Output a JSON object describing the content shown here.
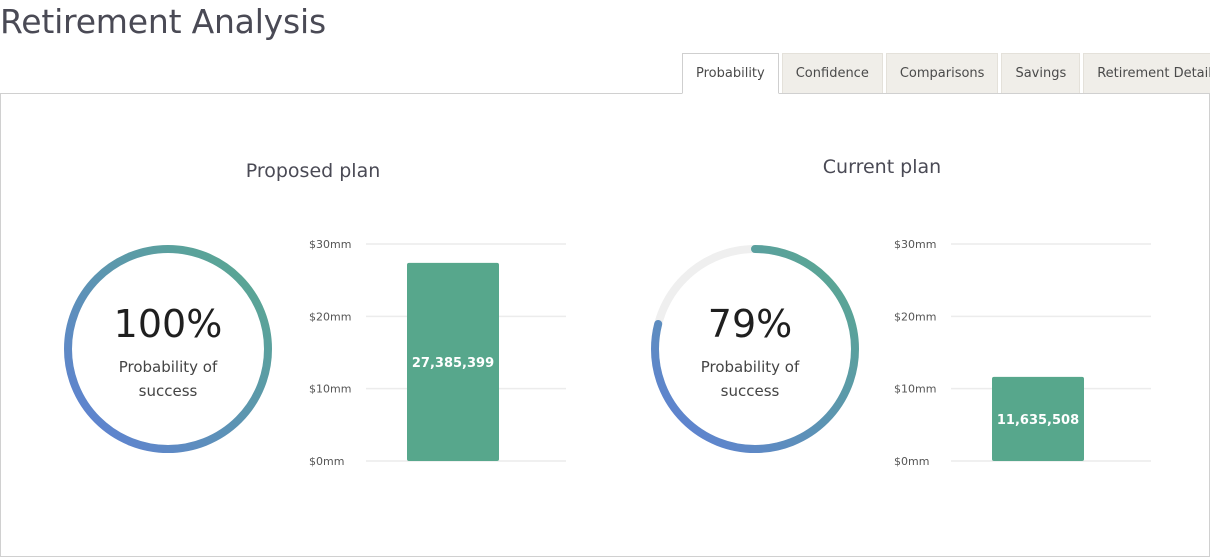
{
  "page": {
    "title": "Retirement Analysis"
  },
  "tabs": [
    {
      "label": "Probability",
      "active": true
    },
    {
      "label": "Confidence",
      "active": false
    },
    {
      "label": "Comparisons",
      "active": false
    },
    {
      "label": "Savings",
      "active": false
    },
    {
      "label": "Retirement Details",
      "active": false
    }
  ],
  "colors": {
    "bar": "#57a78c",
    "ring_start": "#5f7ed8",
    "ring_end": "#59ab8b",
    "ring_track": "#efefef",
    "grid": "#ececec"
  },
  "proposed": {
    "title": "Proposed plan",
    "probability_text": "100%",
    "probability_value": 1.0,
    "probability_label_line1": "Probability of",
    "probability_label_line2": "success"
  },
  "current": {
    "title": "Current plan",
    "probability_text": "79%",
    "probability_value": 0.79,
    "probability_label_line1": "Probability of",
    "probability_label_line2": "success"
  },
  "chart_data": [
    {
      "type": "bar",
      "categories": [
        "Proposed plan"
      ],
      "values": [
        27385399
      ],
      "data_labels": [
        "27,385,399"
      ],
      "yticks": [
        "$0mm",
        "$10mm",
        "$20mm",
        "$30mm"
      ],
      "ylim": [
        0,
        30000000
      ],
      "grid": true
    },
    {
      "type": "bar",
      "categories": [
        "Current plan"
      ],
      "values": [
        11635508
      ],
      "data_labels": [
        "11,635,508"
      ],
      "yticks": [
        "$0mm",
        "$10mm",
        "$20mm",
        "$30mm"
      ],
      "ylim": [
        0,
        30000000
      ],
      "grid": true
    }
  ]
}
